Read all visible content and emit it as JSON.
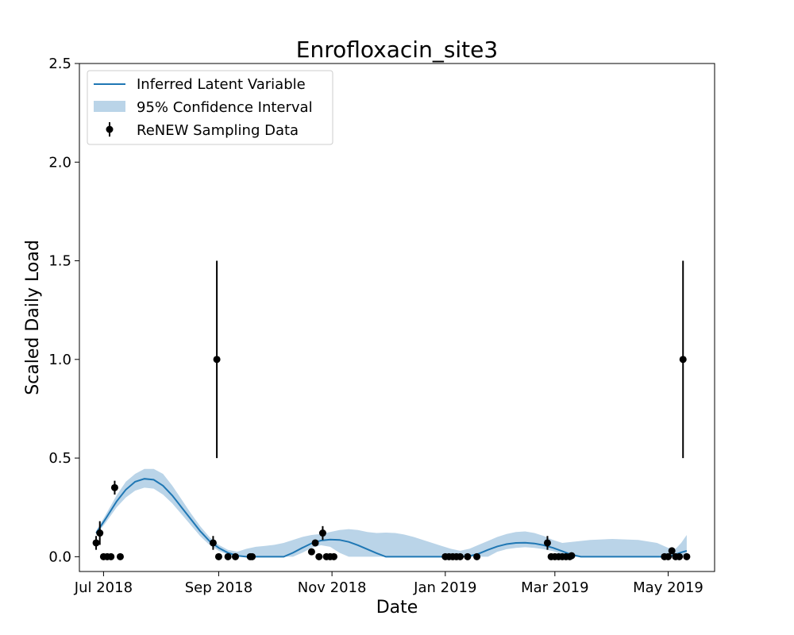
{
  "chart_data": {
    "type": "line",
    "title": "Enrofloxacin_site3",
    "xlabel": "Date",
    "ylabel": "Scaled Daily Load",
    "xlim": [
      "2018-06-18",
      "2019-05-26"
    ],
    "ylim": [
      -0.075,
      2.5
    ],
    "yticks": [
      0.0,
      0.5,
      1.0,
      1.5,
      2.0,
      2.5
    ],
    "ytick_labels": [
      "0.0",
      "0.5",
      "1.0",
      "1.5",
      "2.0",
      "2.5"
    ],
    "xticks": [
      "2018-07-01",
      "2018-09-01",
      "2018-11-01",
      "2019-01-01",
      "2019-03-01",
      "2019-05-01"
    ],
    "xtick_labels": [
      "Jul 2018",
      "Sep 2018",
      "Nov 2018",
      "Jan 2019",
      "Mar 2019",
      "May 2019"
    ],
    "legend_position": "upper-left",
    "legend": [
      "Inferred Latent Variable",
      "95% Confidence Interval",
      "ReNEW Sampling Data"
    ],
    "colors": {
      "line": "#1f77b4",
      "band": "#bad4e8",
      "points": "#000000"
    },
    "series": [
      {
        "name": "Inferred Latent Variable",
        "kind": "line",
        "x": [
          "2018-06-27",
          "2018-07-02",
          "2018-07-08",
          "2018-07-13",
          "2018-07-18",
          "2018-07-23",
          "2018-07-28",
          "2018-08-02",
          "2018-08-07",
          "2018-08-12",
          "2018-08-17",
          "2018-08-22",
          "2018-08-27",
          "2018-09-01",
          "2018-09-06",
          "2018-09-11",
          "2018-09-16",
          "2018-09-21",
          "2018-09-26",
          "2018-10-01",
          "2018-10-06",
          "2018-10-11",
          "2018-10-16",
          "2018-10-21",
          "2018-10-26",
          "2018-10-31",
          "2018-11-05",
          "2018-11-10",
          "2018-11-15",
          "2018-11-20",
          "2018-11-25",
          "2018-11-30",
          "2018-12-05",
          "2018-12-10",
          "2018-12-15",
          "2018-12-20",
          "2018-12-25",
          "2018-12-30",
          "2019-01-04",
          "2019-01-09",
          "2019-01-14",
          "2019-01-19",
          "2019-01-24",
          "2019-01-29",
          "2019-02-03",
          "2019-02-08",
          "2019-02-13",
          "2019-02-18",
          "2019-02-23",
          "2019-02-28",
          "2019-03-05",
          "2019-03-10",
          "2019-03-15",
          "2019-03-20",
          "2019-04-01",
          "2019-04-15",
          "2019-04-25",
          "2019-05-01",
          "2019-05-05",
          "2019-05-08",
          "2019-05-11"
        ],
        "y": [
          0.12,
          0.19,
          0.28,
          0.34,
          0.38,
          0.395,
          0.39,
          0.36,
          0.31,
          0.25,
          0.19,
          0.13,
          0.08,
          0.045,
          0.02,
          0.005,
          0.0,
          0.0,
          0.0,
          0.0,
          0.0,
          0.02,
          0.045,
          0.068,
          0.082,
          0.087,
          0.085,
          0.075,
          0.058,
          0.038,
          0.018,
          0.0,
          0.0,
          0.0,
          0.0,
          0.0,
          0.0,
          0.0,
          0.0,
          0.0,
          0.003,
          0.015,
          0.035,
          0.052,
          0.064,
          0.07,
          0.071,
          0.067,
          0.058,
          0.045,
          0.028,
          0.01,
          0.0,
          0.0,
          0.0,
          0.0,
          0.0,
          0.0,
          0.012,
          0.022,
          0.03
        ]
      },
      {
        "name": "95% Confidence Interval",
        "kind": "band",
        "x": [
          "2018-06-27",
          "2018-07-02",
          "2018-07-08",
          "2018-07-13",
          "2018-07-18",
          "2018-07-23",
          "2018-07-28",
          "2018-08-02",
          "2018-08-07",
          "2018-08-12",
          "2018-08-17",
          "2018-08-22",
          "2018-08-27",
          "2018-09-01",
          "2018-09-06",
          "2018-09-11",
          "2018-09-16",
          "2018-09-21",
          "2018-09-26",
          "2018-10-01",
          "2018-10-06",
          "2018-10-11",
          "2018-10-16",
          "2018-10-21",
          "2018-10-26",
          "2018-10-31",
          "2018-11-05",
          "2018-11-10",
          "2018-11-15",
          "2018-11-20",
          "2018-11-25",
          "2018-11-30",
          "2018-12-05",
          "2018-12-10",
          "2018-12-15",
          "2018-12-20",
          "2018-12-25",
          "2018-12-30",
          "2019-01-04",
          "2019-01-09",
          "2019-01-14",
          "2019-01-19",
          "2019-01-24",
          "2019-01-29",
          "2019-02-03",
          "2019-02-08",
          "2019-02-13",
          "2019-02-18",
          "2019-02-23",
          "2019-02-28",
          "2019-03-05",
          "2019-03-10",
          "2019-03-15",
          "2019-03-20",
          "2019-04-01",
          "2019-04-15",
          "2019-04-25",
          "2019-05-01",
          "2019-05-05",
          "2019-05-08",
          "2019-05-11"
        ],
        "lower": [
          0.11,
          0.17,
          0.25,
          0.3,
          0.335,
          0.35,
          0.345,
          0.315,
          0.27,
          0.215,
          0.16,
          0.105,
          0.06,
          0.03,
          0.01,
          0.0,
          0.0,
          0.0,
          0.0,
          0.0,
          0.0,
          0.0,
          0.02,
          0.045,
          0.058,
          0.05,
          0.02,
          0.0,
          0.0,
          0.0,
          0.0,
          0.0,
          0.0,
          0.0,
          0.0,
          0.0,
          0.0,
          0.0,
          0.0,
          0.0,
          0.0,
          0.0,
          0.0,
          0.025,
          0.038,
          0.045,
          0.048,
          0.045,
          0.038,
          0.028,
          0.012,
          0.0,
          0.0,
          0.0,
          0.0,
          0.0,
          0.0,
          0.0,
          0.0,
          0.0,
          0.0
        ],
        "upper": [
          0.13,
          0.21,
          0.31,
          0.38,
          0.42,
          0.445,
          0.445,
          0.42,
          0.36,
          0.29,
          0.22,
          0.155,
          0.1,
          0.06,
          0.035,
          0.025,
          0.04,
          0.05,
          0.055,
          0.06,
          0.07,
          0.085,
          0.1,
          0.11,
          0.115,
          0.125,
          0.135,
          0.14,
          0.135,
          0.125,
          0.12,
          0.122,
          0.12,
          0.112,
          0.1,
          0.085,
          0.07,
          0.055,
          0.04,
          0.03,
          0.04,
          0.06,
          0.08,
          0.1,
          0.115,
          0.125,
          0.128,
          0.12,
          0.105,
          0.085,
          0.07,
          0.075,
          0.08,
          0.085,
          0.09,
          0.085,
          0.07,
          0.045,
          0.04,
          0.07,
          0.11
        ]
      },
      {
        "name": "ReNEW Sampling Data",
        "kind": "errorbar",
        "x": [
          "2018-06-27",
          "2018-06-29",
          "2018-07-01",
          "2018-07-03",
          "2018-07-05",
          "2018-07-07",
          "2018-07-10",
          "2018-08-29",
          "2018-08-31",
          "2018-09-01",
          "2018-09-06",
          "2018-09-10",
          "2018-09-18",
          "2018-09-19",
          "2018-10-21",
          "2018-10-23",
          "2018-10-25",
          "2018-10-27",
          "2018-10-29",
          "2018-10-31",
          "2018-11-02",
          "2019-01-01",
          "2019-01-03",
          "2019-01-05",
          "2019-01-07",
          "2019-01-09",
          "2019-01-13",
          "2019-01-18",
          "2019-02-25",
          "2019-02-27",
          "2019-03-01",
          "2019-03-03",
          "2019-03-05",
          "2019-03-07",
          "2019-03-09",
          "2019-03-10",
          "2019-04-29",
          "2019-05-01",
          "2019-05-03",
          "2019-05-05",
          "2019-05-07",
          "2019-05-09",
          "2019-05-11"
        ],
        "y": [
          0.07,
          0.12,
          0.0,
          0.0,
          0.0,
          0.35,
          0.0,
          0.07,
          1.0,
          0.0,
          0.0,
          0.0,
          0.0,
          0.0,
          0.025,
          0.07,
          0.0,
          0.12,
          0.0,
          0.0,
          0.0,
          0.0,
          0.0,
          0.0,
          0.0,
          0.0,
          0.0,
          0.0,
          0.07,
          0.0,
          0.0,
          0.0,
          0.0,
          0.0,
          0.0,
          0.005,
          0.0,
          0.0,
          0.03,
          0.0,
          0.0,
          1.0,
          0.0
        ],
        "err": [
          0.035,
          0.06,
          0.0,
          0.0,
          0.0,
          0.035,
          0.0,
          0.035,
          0.5,
          0.0,
          0.0,
          0.0,
          0.0,
          0.0,
          0.0,
          0.015,
          0.0,
          0.035,
          0.0,
          0.0,
          0.0,
          0.0,
          0.0,
          0.0,
          0.0,
          0.0,
          0.0,
          0.0,
          0.035,
          0.0,
          0.0,
          0.0,
          0.0,
          0.0,
          0.0,
          0.0,
          0.0,
          0.0,
          0.0,
          0.0,
          0.0,
          0.5,
          0.0
        ]
      }
    ]
  }
}
